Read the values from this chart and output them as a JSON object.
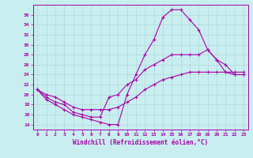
{
  "xlabel": "Windchill (Refroidissement éolien,°C)",
  "ylabel": "",
  "bg_color": "#c8eef0",
  "line_color": "#aa00aa",
  "grid_color": "#b0d8dc",
  "xlim": [
    -0.5,
    23.5
  ],
  "ylim": [
    13,
    38
  ],
  "xticks": [
    0,
    1,
    2,
    3,
    4,
    5,
    6,
    7,
    8,
    9,
    10,
    11,
    12,
    13,
    14,
    15,
    16,
    17,
    18,
    19,
    20,
    21,
    22,
    23
  ],
  "yticks": [
    14,
    16,
    18,
    20,
    22,
    24,
    26,
    28,
    30,
    32,
    34,
    36
  ],
  "line1_x": [
    0,
    1,
    2,
    3,
    4,
    5,
    6,
    7,
    8,
    9,
    10,
    11,
    12,
    13,
    14,
    15,
    16,
    17,
    18,
    19,
    20,
    21,
    22,
    23
  ],
  "line1_y": [
    21,
    19,
    18,
    17,
    16,
    15.5,
    15,
    14.5,
    14,
    14,
    20,
    24,
    28,
    31,
    35.5,
    37,
    37,
    35,
    33,
    29,
    27,
    24.5,
    24,
    24
  ],
  "line2_x": [
    0,
    1,
    2,
    3,
    4,
    5,
    6,
    7,
    8,
    9,
    10,
    11,
    12,
    13,
    14,
    15,
    16,
    17,
    18,
    19,
    20,
    21,
    22,
    23
  ],
  "line2_y": [
    21,
    19.5,
    18.5,
    18,
    16.5,
    16,
    15.5,
    15.5,
    19.5,
    20,
    22,
    23,
    25,
    26,
    27,
    28,
    28,
    28,
    28,
    29,
    27,
    26,
    24,
    24
  ],
  "line3_x": [
    0,
    1,
    2,
    3,
    4,
    5,
    6,
    7,
    8,
    9,
    10,
    11,
    12,
    13,
    14,
    15,
    16,
    17,
    18,
    19,
    20,
    21,
    22,
    23
  ],
  "line3_y": [
    21,
    20,
    19.5,
    18.5,
    17.5,
    17,
    17,
    17,
    17,
    17.5,
    18.5,
    19.5,
    21,
    22,
    23,
    23.5,
    24,
    24.5,
    24.5,
    24.5,
    24.5,
    24.5,
    24.5,
    24.5
  ]
}
